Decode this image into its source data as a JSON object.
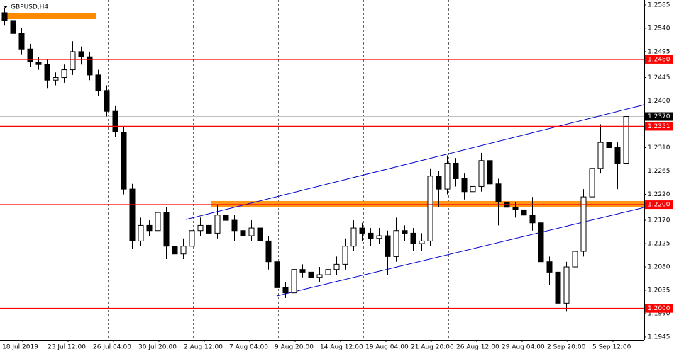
{
  "chart_data": {
    "type": "candlestick",
    "title": "GBPUSD,H4",
    "x_labels": [
      "18 Jul 2019",
      "23 Jul 12:00",
      "26 Jul 04:00",
      "30 Jul 20:00",
      "2 Aug 12:00",
      "7 Aug 04:00",
      "9 Aug 20:00",
      "14 Aug 12:00",
      "19 Aug 04:00",
      "21 Aug 20:00",
      "26 Aug 12:00",
      "29 Aug 04:00",
      "2 Sep 20:00",
      "5 Sep 12:00"
    ],
    "open": [
      1.257,
      1.2555,
      1.253,
      1.25,
      1.2475,
      1.247,
      1.244,
      1.2445,
      1.246,
      1.2495,
      1.2485,
      1.245,
      1.242,
      1.238,
      1.234,
      1.223,
      1.213,
      1.216,
      1.215,
      1.2185,
      1.212,
      1.2105,
      1.212,
      1.215,
      1.216,
      1.2145,
      1.218,
      1.217,
      1.215,
      1.214,
      1.2155,
      1.213,
      1.209,
      1.204,
      1.203,
      1.2075,
      1.207,
      1.206,
      1.2065,
      1.2075,
      1.2085,
      1.212,
      1.2155,
      1.2145,
      1.2135,
      1.214,
      1.21,
      1.215,
      1.2145,
      1.2125,
      1.213,
      1.2255,
      1.223,
      1.228,
      1.225,
      1.2225,
      1.2235,
      1.2285,
      1.224,
      1.2205,
      1.2195,
      1.219,
      1.218,
      1.2165,
      1.209,
      1.207,
      1.201,
      1.208,
      1.211,
      1.2215,
      1.227,
      1.232,
      1.231,
      1.228
    ],
    "high": [
      1.258,
      1.2565,
      1.254,
      1.251,
      1.2485,
      1.248,
      1.2455,
      1.247,
      1.2515,
      1.2505,
      1.2495,
      1.246,
      1.243,
      1.239,
      1.235,
      1.224,
      1.2175,
      1.217,
      1.2235,
      1.2195,
      1.213,
      1.2135,
      1.216,
      1.2175,
      1.217,
      1.22,
      1.219,
      1.218,
      1.2165,
      1.217,
      1.2165,
      1.214,
      1.21,
      1.205,
      1.209,
      1.2085,
      1.208,
      1.208,
      1.209,
      1.21,
      1.2135,
      1.217,
      1.2165,
      1.2155,
      1.2155,
      1.215,
      1.2175,
      1.216,
      1.2155,
      1.2145,
      1.227,
      1.2265,
      1.2295,
      1.229,
      1.226,
      1.227,
      1.23,
      1.229,
      1.225,
      1.2215,
      1.2205,
      1.2215,
      1.2215,
      1.2175,
      1.21,
      1.208,
      1.209,
      1.2125,
      1.223,
      1.2285,
      1.2355,
      1.2335,
      1.232,
      1.2385
    ],
    "low": [
      1.2545,
      1.252,
      1.249,
      1.2465,
      1.246,
      1.2425,
      1.243,
      1.2435,
      1.245,
      1.247,
      1.244,
      1.241,
      1.237,
      1.233,
      1.222,
      1.2115,
      1.212,
      1.214,
      1.214,
      1.2095,
      1.209,
      1.2095,
      1.211,
      1.214,
      1.2135,
      1.2135,
      1.2155,
      1.213,
      1.2125,
      1.213,
      1.2115,
      1.2075,
      1.2025,
      1.202,
      1.2025,
      1.206,
      1.2045,
      1.205,
      1.2055,
      1.2065,
      1.2075,
      1.211,
      1.213,
      1.212,
      1.2125,
      1.2065,
      1.209,
      1.213,
      1.211,
      1.211,
      1.212,
      1.2195,
      1.222,
      1.2235,
      1.221,
      1.2215,
      1.2225,
      1.222,
      1.216,
      1.218,
      1.2175,
      1.2165,
      1.215,
      1.207,
      1.2045,
      1.1965,
      1.1995,
      1.207,
      1.21,
      1.22,
      1.226,
      1.2295,
      1.223,
      1.2265
    ],
    "close": [
      1.2555,
      1.253,
      1.25,
      1.2475,
      1.247,
      1.244,
      1.2445,
      1.246,
      1.2495,
      1.2485,
      1.245,
      1.242,
      1.238,
      1.234,
      1.223,
      1.213,
      1.216,
      1.215,
      1.2185,
      1.212,
      1.2105,
      1.212,
      1.215,
      1.216,
      1.2145,
      1.218,
      1.217,
      1.215,
      1.214,
      1.2155,
      1.213,
      1.209,
      1.204,
      1.203,
      1.2075,
      1.207,
      1.206,
      1.2065,
      1.2075,
      1.2085,
      1.212,
      1.2155,
      1.2145,
      1.2135,
      1.214,
      1.21,
      1.215,
      1.2145,
      1.2125,
      1.213,
      1.2255,
      1.223,
      1.228,
      1.225,
      1.2225,
      1.2235,
      1.2285,
      1.224,
      1.2205,
      1.2195,
      1.219,
      1.218,
      1.2165,
      1.209,
      1.207,
      1.201,
      1.208,
      1.211,
      1.2215,
      1.227,
      1.232,
      1.231,
      1.228,
      1.237
    ],
    "up_color": "#ffffff",
    "down_color": "#000000",
    "ylim": [
      1.19395,
      1.25945
    ],
    "yticks": [
      1.2585,
      {
        "value": 1.254,
        "label": "1.2540"
      },
      1.2495,
      1.2445,
      {
        "value": 1.24,
        "label": "1.2400"
      },
      {
        "value": 1.231,
        "label": "1.2310"
      },
      1.2265,
      {
        "value": 1.222,
        "label": "1.2220"
      },
      {
        "value": 1.217,
        "label": "1.2170"
      },
      1.2125,
      {
        "value": 1.208,
        "label": "1.2080"
      },
      1.2035,
      {
        "value": 1.199,
        "label": "1.1990"
      },
      1.1945
    ],
    "levels": [
      {
        "value": 1.248,
        "label": "1.2480"
      },
      {
        "value": 1.2351,
        "label": "1.2351"
      },
      {
        "value": 1.22,
        "label": "1.2200"
      },
      {
        "value": 1.2,
        "label": "1.2000"
      }
    ],
    "level_color": "#ff0000",
    "last_price": {
      "value": 1.237,
      "label": "1.2370"
    },
    "zone": [
      1.2195,
      1.2207
    ],
    "zone_color": "#ff8c00",
    "grid": true
  }
}
